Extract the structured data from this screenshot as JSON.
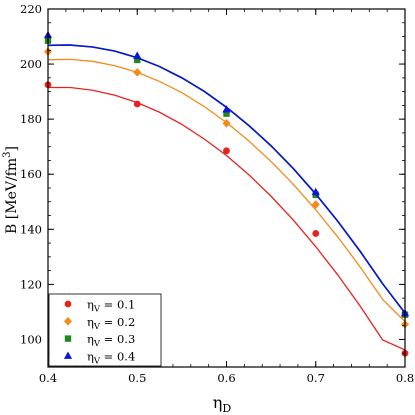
{
  "chart_data": {
    "type": "scatter",
    "xlabel": {
      "main": "η",
      "sub": "D"
    },
    "ylabel": {
      "prefix": "B [MeV/fm",
      "sup": "3",
      "suffix": "]"
    },
    "xlim": [
      0.4,
      0.8
    ],
    "ylim": [
      90,
      220
    ],
    "x_ticks": [
      0.4,
      0.5,
      0.6,
      0.7,
      0.8
    ],
    "x_tick_labels": [
      "0.4",
      "0.5",
      "0.6",
      "0.7",
      "0.8"
    ],
    "y_ticks": [
      100,
      120,
      140,
      160,
      180,
      200,
      220
    ],
    "y_tick_labels": [
      "100",
      "120",
      "140",
      "160",
      "180",
      "200",
      "220"
    ],
    "grid": false,
    "legend_position": "bottom-left",
    "series": [
      {
        "name": "η_V = 0.1",
        "label_main": "η",
        "label_sub": "V",
        "label_rest": " = 0.1",
        "color": "#e8231f",
        "marker": "circle",
        "x": [
          0.4,
          0.5,
          0.6,
          0.7,
          0.8
        ],
        "y": [
          192.5,
          185.5,
          168.5,
          138.5,
          95.0
        ],
        "fit_x": [
          0.4,
          0.425,
          0.45,
          0.475,
          0.5,
          0.525,
          0.55,
          0.575,
          0.6,
          0.625,
          0.65,
          0.675,
          0.7,
          0.725,
          0.75,
          0.775,
          0.8
        ],
        "fit_y": [
          191.5,
          191.5,
          190.5,
          188.7,
          186.0,
          182.5,
          178.1,
          172.8,
          166.8,
          159.8,
          152.0,
          143.3,
          133.7,
          123.3,
          112.0,
          99.8,
          96.2
        ]
      },
      {
        "name": "η_V = 0.2",
        "label_main": "η",
        "label_sub": "V",
        "label_rest": " = 0.2",
        "color": "#f7891b",
        "marker": "diamond",
        "x": [
          0.4,
          0.5,
          0.6,
          0.7,
          0.8
        ],
        "y": [
          204.5,
          197.0,
          178.5,
          149.0,
          105.5
        ],
        "fit_x": [
          0.4,
          0.425,
          0.45,
          0.475,
          0.5,
          0.525,
          0.55,
          0.575,
          0.6,
          0.625,
          0.65,
          0.675,
          0.7,
          0.725,
          0.75,
          0.775,
          0.8
        ],
        "fit_y": [
          201.6,
          201.7,
          201.0,
          199.4,
          197.0,
          193.7,
          189.6,
          184.6,
          178.8,
          172.1,
          164.6,
          156.3,
          147.1,
          137.1,
          126.2,
          114.5,
          106.5
        ]
      },
      {
        "name": "η_V = 0.3",
        "label_main": "η",
        "label_sub": "V",
        "label_rest": " = 0.3",
        "color": "#23871e",
        "marker": "square",
        "x": [
          0.4,
          0.5,
          0.6,
          0.7,
          0.8
        ],
        "y": [
          208.5,
          201.5,
          182.0,
          152.5,
          109.0
        ],
        "fit_x": [
          0.4,
          0.425,
          0.45,
          0.475,
          0.5,
          0.525,
          0.55,
          0.575,
          0.6,
          0.625,
          0.65,
          0.675,
          0.7,
          0.725,
          0.75,
          0.775,
          0.8
        ],
        "fit_y": [
          206.8,
          206.9,
          206.2,
          204.7,
          202.3,
          199.1,
          195.0,
          190.1,
          184.3,
          177.7,
          170.3,
          162.0,
          152.8,
          142.8,
          131.9,
          120.2,
          109.6
        ]
      },
      {
        "name": "η_V = 0.4",
        "label_main": "η",
        "label_sub": "V",
        "label_rest": " = 0.4",
        "color": "#0a16d8",
        "marker": "triangle",
        "x": [
          0.4,
          0.5,
          0.6,
          0.7,
          0.8
        ],
        "y": [
          210.5,
          203.0,
          183.5,
          153.5,
          109.5
        ],
        "fit_x": [
          0.4,
          0.425,
          0.45,
          0.475,
          0.5,
          0.525,
          0.55,
          0.575,
          0.6,
          0.625,
          0.65,
          0.675,
          0.7,
          0.725,
          0.75,
          0.775,
          0.8
        ],
        "fit_y": [
          206.8,
          206.9,
          206.2,
          204.7,
          202.3,
          199.1,
          195.0,
          190.1,
          184.3,
          177.7,
          170.3,
          162.0,
          152.8,
          142.8,
          131.9,
          120.2,
          109.6
        ]
      }
    ]
  }
}
